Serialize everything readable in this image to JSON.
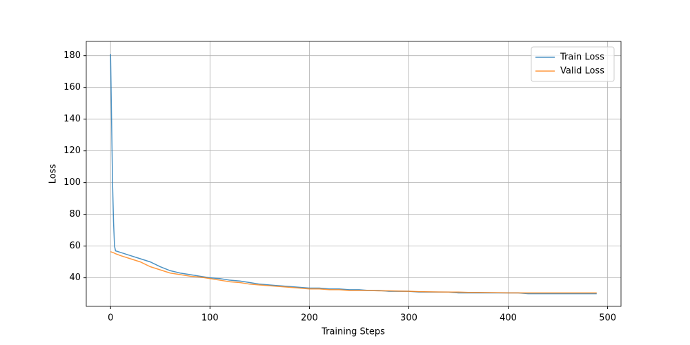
{
  "chart_data": {
    "type": "line",
    "x": [
      0,
      1,
      2,
      3,
      4,
      5,
      10,
      20,
      30,
      40,
      50,
      60,
      70,
      80,
      90,
      100,
      110,
      120,
      130,
      140,
      150,
      160,
      170,
      180,
      190,
      200,
      210,
      220,
      230,
      240,
      250,
      260,
      270,
      280,
      290,
      300,
      310,
      320,
      330,
      340,
      350,
      360,
      370,
      380,
      390,
      400,
      410,
      420,
      430,
      440,
      450,
      460,
      470,
      480,
      489
    ],
    "series": [
      {
        "name": "Train Loss",
        "color": "#1f77b4",
        "values": [
          181,
          140,
          100,
          75,
          60,
          57,
          56,
          54,
          52,
          50,
          47,
          44.5,
          43,
          42,
          41,
          40,
          39.5,
          38.5,
          38,
          37,
          36,
          35.5,
          35,
          34.5,
          34,
          33.5,
          33.5,
          33,
          33,
          32.5,
          32.5,
          32,
          32,
          31.5,
          31.5,
          31.5,
          31,
          31,
          31,
          31,
          30.5,
          30.5,
          30.5,
          30.5,
          30.5,
          30.5,
          30.5,
          30,
          30,
          30,
          30,
          30,
          30,
          30,
          30
        ]
      },
      {
        "name": "Valid Loss",
        "color": "#ff7f0e",
        "values": [
          56.5,
          56.2,
          56,
          55.8,
          55.5,
          55.2,
          54,
          52,
          50,
          47,
          45,
          43,
          42,
          41,
          40.5,
          39.5,
          38.5,
          37.5,
          37,
          36,
          35.5,
          35,
          34.5,
          34,
          33.5,
          33,
          33,
          32.5,
          32.5,
          32,
          32,
          32,
          31.8,
          31.8,
          31.6,
          31.5,
          31.3,
          31.2,
          31.1,
          31,
          31,
          30.8,
          30.8,
          30.7,
          30.6,
          30.5,
          30.5,
          30.5,
          30.5,
          30.5,
          30.5,
          30.5,
          30.5,
          30.5,
          30.5
        ]
      }
    ],
    "x_label": "Training Steps",
    "y_label": "Loss",
    "xlim": [
      -24.45,
      513.45
    ],
    "ylim": [
      22,
      189
    ],
    "xticks": [
      0,
      100,
      200,
      300,
      400,
      500
    ],
    "yticks": [
      40,
      60,
      80,
      100,
      120,
      140,
      160,
      180
    ],
    "grid": true,
    "legend": "upper right"
  }
}
